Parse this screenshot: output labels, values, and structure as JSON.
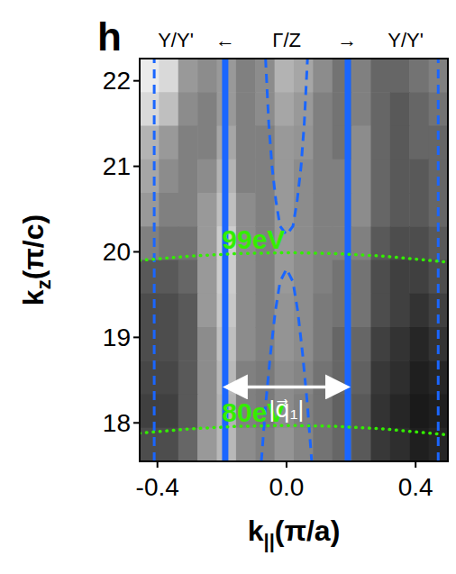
{
  "chart_data": {
    "type": "heatmap",
    "panel": "h",
    "top_labels": [
      "Y/Y'",
      "←",
      "Γ/Z",
      "→",
      "Y/Y'"
    ],
    "x_label": {
      "base": "k",
      "sub": "||",
      "rest": "(π/a)"
    },
    "y_label": {
      "base": "k",
      "sub": "z",
      "rest": "(π/c)"
    },
    "xlim": [
      -0.455,
      0.5
    ],
    "ylim": [
      17.55,
      22.26
    ],
    "xticks": [
      {
        "value": -0.4,
        "label": "-0.4"
      },
      {
        "value": 0,
        "label": "0.0"
      },
      {
        "value": 0.4,
        "label": "0.4"
      }
    ],
    "yticks": [
      18,
      19,
      20,
      21,
      22
    ],
    "intensity_range": [
      0,
      100
    ],
    "intensity": [
      [
        92,
        85,
        60,
        55,
        60,
        50,
        55,
        70,
        65,
        55,
        45,
        50,
        40,
        40,
        45,
        50
      ],
      [
        85,
        75,
        55,
        50,
        60,
        50,
        55,
        65,
        60,
        50,
        45,
        50,
        40,
        35,
        40,
        45
      ],
      [
        70,
        60,
        50,
        50,
        65,
        50,
        50,
        60,
        58,
        50,
        45,
        55,
        40,
        35,
        40,
        40
      ],
      [
        65,
        55,
        50,
        55,
        70,
        50,
        50,
        60,
        55,
        50,
        50,
        55,
        40,
        35,
        35,
        40
      ],
      [
        60,
        50,
        50,
        60,
        75,
        55,
        50,
        60,
        55,
        50,
        50,
        55,
        40,
        35,
        35,
        40
      ],
      [
        50,
        45,
        45,
        60,
        80,
        55,
        50,
        60,
        55,
        50,
        50,
        50,
        35,
        30,
        30,
        35
      ],
      [
        35,
        35,
        40,
        60,
        80,
        55,
        50,
        60,
        55,
        50,
        45,
        45,
        30,
        25,
        25,
        30
      ],
      [
        30,
        30,
        35,
        60,
        78,
        55,
        50,
        58,
        55,
        48,
        45,
        45,
        30,
        25,
        20,
        25
      ],
      [
        30,
        30,
        35,
        55,
        75,
        55,
        50,
        58,
        55,
        48,
        40,
        40,
        25,
        20,
        15,
        20
      ],
      [
        28,
        28,
        35,
        55,
        72,
        50,
        48,
        55,
        52,
        45,
        40,
        38,
        22,
        18,
        12,
        15
      ],
      [
        25,
        25,
        35,
        55,
        70,
        50,
        48,
        55,
        50,
        45,
        38,
        35,
        20,
        15,
        10,
        12
      ],
      [
        30,
        30,
        40,
        60,
        72,
        55,
        50,
        58,
        52,
        45,
        40,
        35,
        22,
        18,
        12,
        15
      ]
    ],
    "series": [
      {
        "type": "line",
        "color": "#1a66ff",
        "line_style": "solid",
        "x": [
          -0.19,
          -0.19
        ],
        "values": [
          17.55,
          22.26
        ]
      },
      {
        "type": "line",
        "color": "#1a66ff",
        "line_style": "solid",
        "x": [
          0.19,
          0.19
        ],
        "values": [
          17.55,
          22.26
        ]
      },
      {
        "type": "line",
        "color": "#1a66ff",
        "line_style": "dashed",
        "x": [
          -0.41,
          -0.41
        ],
        "values": [
          17.55,
          22.26
        ]
      },
      {
        "type": "line",
        "color": "#1a66ff",
        "line_style": "dashed",
        "x": [
          0.47,
          0.47
        ],
        "values": [
          17.55,
          22.26
        ]
      },
      {
        "type": "line",
        "color": "#1a66ff",
        "line_style": "dashed",
        "x": [
          -0.065,
          -0.055,
          -0.045,
          -0.033,
          -0.02,
          0,
          0.02,
          0.033,
          0.045,
          0.055,
          0.065
        ],
        "values": [
          22.26,
          21.5,
          21.0,
          20.6,
          20.3,
          20.2,
          20.3,
          20.6,
          21.0,
          21.5,
          22.26
        ]
      },
      {
        "type": "line",
        "color": "#1a66ff",
        "line_style": "dashed",
        "x": [
          -0.078,
          -0.065,
          -0.05,
          -0.035,
          -0.02,
          0,
          0.02,
          0.035,
          0.05,
          0.065,
          0.078
        ],
        "values": [
          17.55,
          18.2,
          18.8,
          19.3,
          19.65,
          19.8,
          19.65,
          19.3,
          18.8,
          18.2,
          17.55
        ]
      },
      {
        "type": "line",
        "name": "99eV",
        "color": "#33ee00",
        "line_style": "dotted",
        "x": [
          -0.455,
          -0.3,
          -0.15,
          0,
          0.15,
          0.3,
          0.5
        ],
        "values": [
          19.9,
          19.95,
          19.98,
          19.99,
          19.98,
          19.95,
          19.88
        ]
      },
      {
        "type": "line",
        "name": "80eV",
        "color": "#33ee00",
        "line_style": "dotted",
        "x": [
          -0.455,
          -0.3,
          -0.15,
          0,
          0.15,
          0.3,
          0.5
        ],
        "values": [
          17.88,
          17.93,
          17.96,
          17.97,
          17.96,
          17.93,
          17.86
        ]
      }
    ],
    "annotations": [
      {
        "text": "|q⃗₁|",
        "x": [
          -0.19,
          0.19
        ],
        "y": 18.42,
        "color": "#ffffff"
      }
    ]
  }
}
